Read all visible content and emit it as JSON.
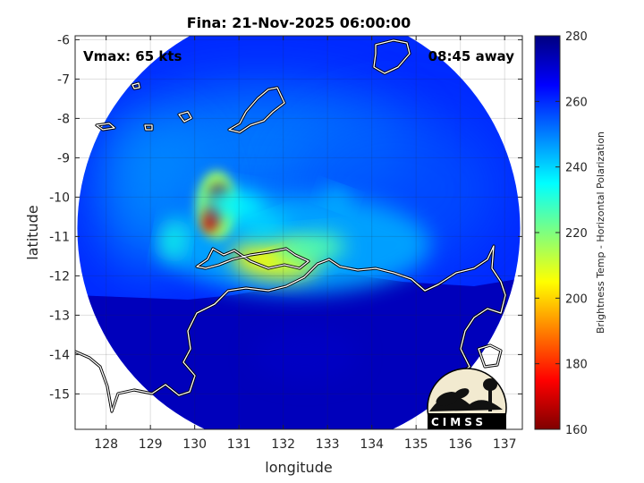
{
  "chart_data": {
    "type": "heatmap",
    "title": "Fina: 21-Nov-2025 06:00:00",
    "xlabel": "longitude",
    "ylabel": "latitude",
    "xlim": [
      127.3,
      137.4
    ],
    "ylim": [
      -15.9,
      -5.9
    ],
    "x_ticks": [
      128,
      129,
      130,
      131,
      132,
      133,
      134,
      135,
      136,
      137
    ],
    "y_ticks": [
      -6,
      -7,
      -8,
      -9,
      -10,
      -11,
      -12,
      -13,
      -14,
      -15
    ],
    "grid": true,
    "annotations": {
      "vmax": "Vmax: 65 kts",
      "time_away": "08:45 away"
    },
    "colorbar": {
      "label": "Brightness Temp - Horizontal Polarization",
      "min": 160,
      "max": 280,
      "ticks": [
        160,
        180,
        200,
        220,
        240,
        260,
        280
      ],
      "colormap": [
        "#7f0000",
        "#ff0000",
        "#ff7f00",
        "#ffff00",
        "#7fff7f",
        "#00ffff",
        "#007fff",
        "#0000ff",
        "#00007f"
      ]
    },
    "swath": {
      "center_lon": 132.35,
      "center_lat": -10.8,
      "radius_deg": 5.0
    },
    "features": [
      {
        "name": "convective-core-north",
        "lon": 130.55,
        "lat": -9.9,
        "tb": 165
      },
      {
        "name": "convective-core-south",
        "lon": 130.4,
        "lat": -10.5,
        "tb": 170
      },
      {
        "name": "rainband-yellow",
        "lon": 131.8,
        "lat": -11.6,
        "tb": 205
      },
      {
        "name": "rainband-green",
        "lon": 132.6,
        "lat": -11.3,
        "tb": 225
      },
      {
        "name": "band-west",
        "lon": 129.5,
        "lat": -11.1,
        "tb": 232
      },
      {
        "name": "band-northwest",
        "lon": 130.9,
        "lat": -10.2,
        "tb": 236
      },
      {
        "name": "band-central",
        "lon": 131.6,
        "lat": -10.8,
        "tb": 238
      },
      {
        "name": "band-northeast",
        "lon": 133.2,
        "lat": -10.0,
        "tb": 240
      },
      {
        "name": "land-cold-area",
        "lon": 132.5,
        "lat": -14.0,
        "tb": 272
      }
    ],
    "logo": "CIMSS"
  }
}
